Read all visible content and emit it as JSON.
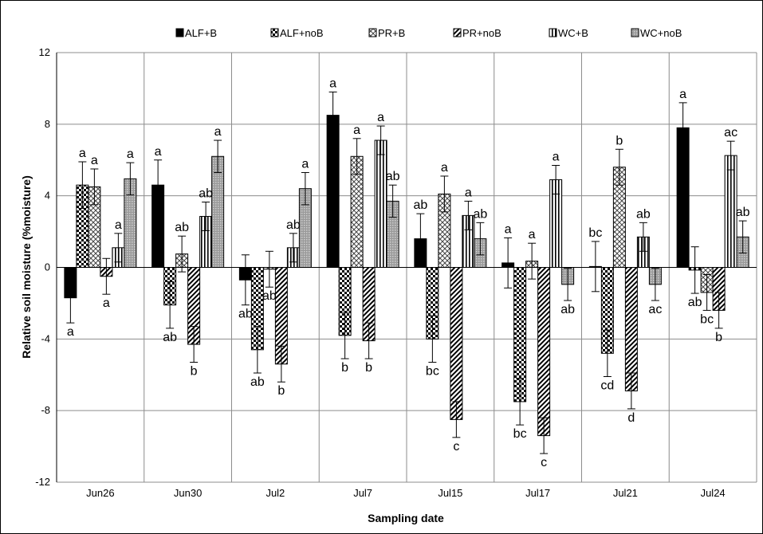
{
  "chart_data": {
    "type": "bar",
    "xlabel": "Sampling date",
    "ylabel": "Relative soil moisture (%moisture)",
    "ylim": [
      -12,
      12
    ],
    "yticks": [
      -12,
      -8,
      -4,
      0,
      4,
      8,
      12
    ],
    "grid": true,
    "legend_position": "top",
    "categories": [
      "Jun26",
      "Jun30",
      "Jul2",
      "Jul7",
      "Jul15",
      "Jul17",
      "Jul21",
      "Jul24"
    ],
    "series": [
      {
        "name": "ALF+B",
        "pattern": "solid",
        "values": [
          -1.7,
          4.6,
          -0.7,
          8.5,
          1.6,
          0.25,
          0.05,
          7.8
        ],
        "errors": [
          1.4,
          1.4,
          1.4,
          1.3,
          1.4,
          1.4,
          1.4,
          1.4
        ],
        "labels": [
          "a",
          "a",
          "ab",
          "a",
          "ab",
          "a",
          "bc",
          "a"
        ]
      },
      {
        "name": "ALF+noB",
        "pattern": "checker",
        "values": [
          4.6,
          -2.1,
          -4.6,
          -3.8,
          -4.0,
          -7.5,
          -4.8,
          -0.15
        ],
        "errors": [
          1.3,
          1.3,
          1.3,
          1.3,
          1.3,
          1.3,
          1.3,
          1.3
        ],
        "labels": [
          "a",
          "ab",
          "ab",
          "b",
          "bc",
          "bc",
          "cd",
          "ab"
        ]
      },
      {
        "name": "PR+B",
        "pattern": "crosshatch",
        "values": [
          4.5,
          0.75,
          -0.1,
          6.2,
          4.1,
          0.35,
          5.6,
          -1.4
        ],
        "errors": [
          1.0,
          1.0,
          1.0,
          1.0,
          1.0,
          1.0,
          1.0,
          1.0
        ],
        "labels": [
          "a",
          "ab",
          "ab",
          "a",
          "a",
          "a",
          "b",
          "bc"
        ]
      },
      {
        "name": "PR+noB",
        "pattern": "diagonal",
        "values": [
          -0.5,
          -4.3,
          -5.4,
          -4.1,
          -8.5,
          -9.4,
          -6.9,
          -2.4
        ],
        "errors": [
          1.0,
          1.0,
          1.0,
          1.0,
          1.0,
          1.0,
          1.0,
          1.0
        ],
        "labels": [
          "a",
          "b",
          "b",
          "b",
          "c",
          "c",
          "d",
          "b"
        ]
      },
      {
        "name": "WC+B",
        "pattern": "vertical",
        "values": [
          1.1,
          2.85,
          1.1,
          7.1,
          2.9,
          4.9,
          1.7,
          6.25
        ],
        "errors": [
          0.8,
          0.8,
          0.8,
          0.8,
          0.8,
          0.8,
          0.8,
          0.8
        ],
        "labels": [
          "a",
          "ab",
          "ab",
          "a",
          "a",
          "a",
          "ab",
          "ac"
        ]
      },
      {
        "name": "WC+noB",
        "pattern": "dots",
        "values": [
          4.95,
          6.2,
          4.4,
          3.7,
          1.6,
          -0.95,
          -0.95,
          1.7
        ],
        "errors": [
          0.9,
          0.9,
          0.9,
          0.9,
          0.9,
          0.9,
          0.9,
          0.9
        ],
        "labels": [
          "a",
          "a",
          "a",
          "ab",
          "ab",
          "ab",
          "ac",
          "ab"
        ]
      }
    ]
  }
}
